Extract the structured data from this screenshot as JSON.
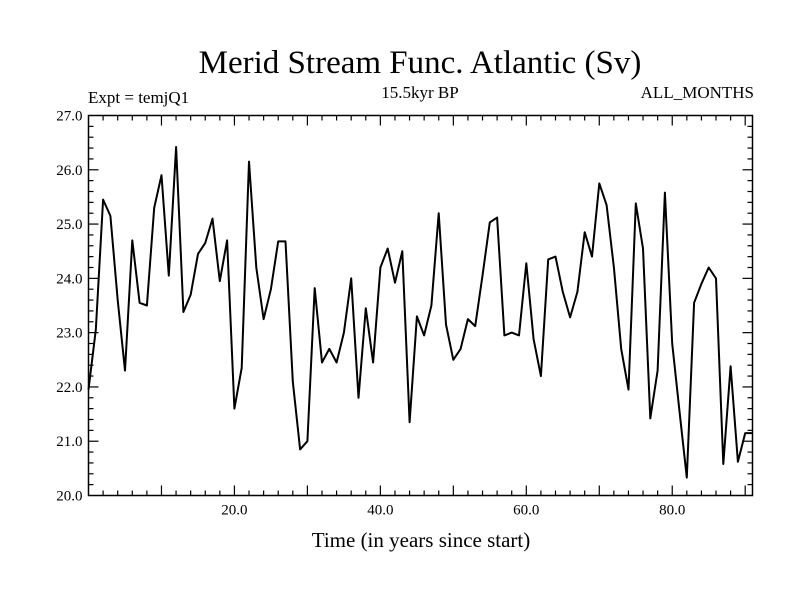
{
  "chart_data": {
    "type": "line",
    "title": "Merid Stream Func. Atlantic (Sv)",
    "subtitle": "15.5kyr BP",
    "left_label": "Expt = temjQ1",
    "right_label": "ALL_MONTHS",
    "xlabel": "Time (in years since start)",
    "ylabel": "",
    "xlim": [
      0,
      91
    ],
    "ylim": [
      20.0,
      27.0
    ],
    "x_ticks": [
      20,
      40,
      60,
      80
    ],
    "x_tick_labels": [
      "20.0",
      "40.0",
      "60.0",
      "80.0"
    ],
    "y_ticks": [
      20,
      21,
      22,
      23,
      24,
      25,
      26,
      27
    ],
    "y_tick_labels": [
      "20.0",
      "21.0",
      "22.0",
      "23.0",
      "24.0",
      "25.0",
      "26.0",
      "27.0"
    ],
    "line_color": "#000000",
    "x": [
      0,
      1,
      2,
      3,
      4,
      5,
      6,
      7,
      8,
      9,
      10,
      11,
      12,
      13,
      14,
      15,
      16,
      17,
      18,
      19,
      20,
      21,
      22,
      23,
      24,
      25,
      26,
      27,
      28,
      29,
      30,
      31,
      32,
      33,
      34,
      35,
      36,
      37,
      38,
      39,
      40,
      41,
      42,
      43,
      44,
      45,
      46,
      47,
      48,
      49,
      50,
      51,
      52,
      53,
      54,
      55,
      56,
      57,
      58,
      59,
      60,
      61,
      62,
      63,
      64,
      65,
      66,
      67,
      68,
      69,
      70,
      71,
      72,
      73,
      74,
      75,
      76,
      77,
      78,
      79,
      80,
      81,
      82,
      83,
      84,
      85,
      86,
      87,
      88,
      89,
      90,
      91
    ],
    "values": [
      21.95,
      23.05,
      25.45,
      25.15,
      23.6,
      22.3,
      24.7,
      23.55,
      23.5,
      25.3,
      25.9,
      24.05,
      26.42,
      23.38,
      23.7,
      24.45,
      24.65,
      25.1,
      23.95,
      24.7,
      21.6,
      22.35,
      26.15,
      24.2,
      23.25,
      23.8,
      24.68,
      24.68,
      22.1,
      20.85,
      21.0,
      23.82,
      22.45,
      22.7,
      22.45,
      23.0,
      24.0,
      21.8,
      23.45,
      22.45,
      24.2,
      24.55,
      23.92,
      24.5,
      21.35,
      23.3,
      22.95,
      23.5,
      25.2,
      23.15,
      22.5,
      22.7,
      23.25,
      23.12,
      24.05,
      25.03,
      25.12,
      22.95,
      23.0,
      22.95,
      24.28,
      22.88,
      22.2,
      24.35,
      24.4,
      23.75,
      23.28,
      23.75,
      24.85,
      24.4,
      25.75,
      25.35,
      24.2,
      22.7,
      21.95,
      25.38,
      24.55,
      21.42,
      22.3,
      25.58,
      22.8,
      21.55,
      20.33,
      23.55,
      23.9,
      24.2,
      24.0,
      20.58,
      22.38,
      20.62,
      21.15,
      21.15
    ]
  }
}
